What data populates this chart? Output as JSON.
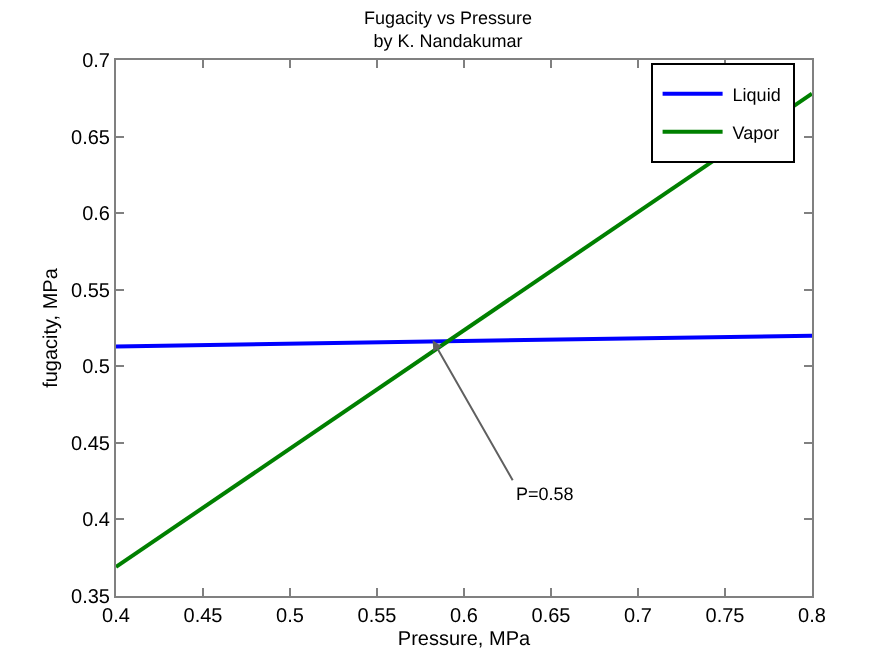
{
  "chart_data": {
    "type": "line",
    "title": "Fugacity vs Pressure",
    "subtitle": "by K. Nandakumar",
    "xlabel": "Pressure, MPa",
    "ylabel": "fugacity, MPa",
    "x": [
      0.4,
      0.8
    ],
    "series": [
      {
        "name": "Liquid",
        "color": "#0000ff",
        "values": [
          0.513,
          0.52
        ]
      },
      {
        "name": "Vapor",
        "color": "#008000",
        "values": [
          0.369,
          0.678
        ]
      }
    ],
    "annotations": [
      {
        "text": "P=0.58",
        "x": 0.582,
        "y": 0.517
      }
    ],
    "xlim": [
      0.4,
      0.8
    ],
    "xticks": [
      0.4,
      0.45,
      0.5,
      0.55,
      0.6,
      0.65,
      0.7,
      0.75,
      0.8
    ],
    "ylim": [
      0.35,
      0.7
    ],
    "yticks": [
      0.35,
      0.4,
      0.45,
      0.5,
      0.55,
      0.6,
      0.65,
      0.7
    ],
    "grid": false,
    "legend": "top right",
    "marker": "none",
    "line_style": "solid"
  }
}
